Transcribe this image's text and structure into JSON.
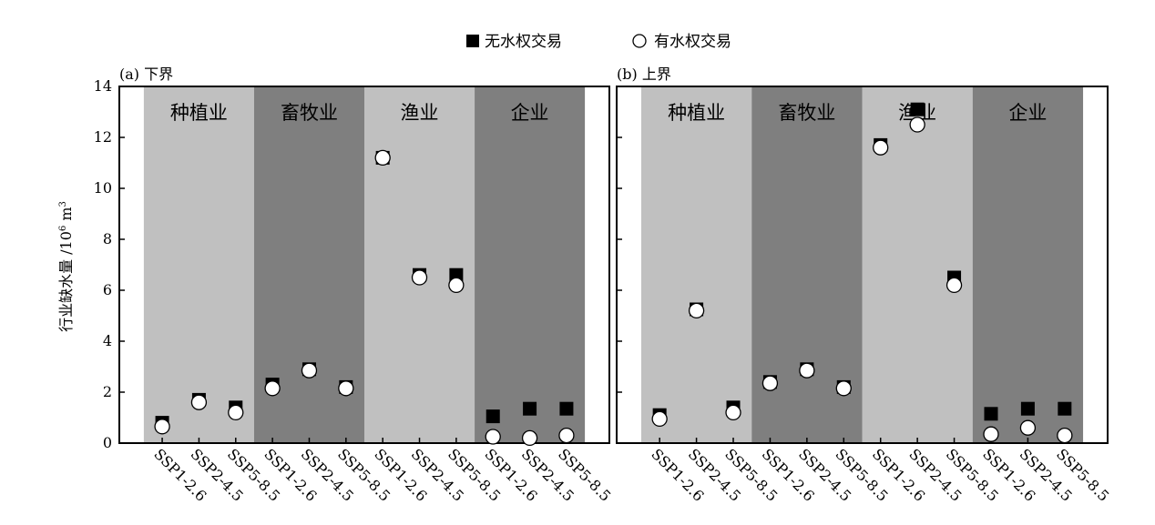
{
  "legend": {
    "no_trade_label": "无水权交易",
    "with_trade_label": "有水权交易"
  },
  "ylabel_main": "行业缺水量 /10",
  "ylabel_sup": "6",
  "ylabel_unit": " m",
  "ylabel_sup2": "3",
  "colors": {
    "band_light": "#c0c0c0",
    "band_dark": "#7f7f7f",
    "marker_fill_square": "#000000",
    "marker_fill_circle": "#ffffff"
  },
  "chart_data": [
    {
      "type": "scatter",
      "panel_label": "(a) 下界",
      "ylim": [
        0,
        14
      ],
      "yticks": [
        0,
        2,
        4,
        6,
        8,
        10,
        12,
        14
      ],
      "categories": [
        "SSP1-2.6",
        "SSP2-4.5",
        "SSP5-8.5",
        "SSP1-2.6",
        "SSP2-4.5",
        "SSP5-8.5",
        "SSP1-2.6",
        "SSP2-4.5",
        "SSP5-8.5",
        "SSP1-2.6",
        "SSP2-4.5",
        "SSP5-8.5"
      ],
      "groups": [
        "种植业",
        "畜牧业",
        "渔业",
        "企业"
      ],
      "series": [
        {
          "name": "无水权交易",
          "values": [
            0.8,
            1.7,
            1.4,
            2.3,
            2.9,
            2.2,
            11.2,
            6.6,
            6.6,
            1.05,
            1.35,
            1.35
          ]
        },
        {
          "name": "有水权交易",
          "values": [
            0.65,
            1.6,
            1.2,
            2.15,
            2.85,
            2.15,
            11.2,
            6.5,
            6.2,
            0.25,
            0.2,
            0.3
          ]
        }
      ]
    },
    {
      "type": "scatter",
      "panel_label": "(b) 上界",
      "ylim": [
        0,
        14
      ],
      "yticks": [
        0,
        2,
        4,
        6,
        8,
        10,
        12,
        14
      ],
      "categories": [
        "SSP1-2.6",
        "SSP2-4.5",
        "SSP5-8.5",
        "SSP1-2.6",
        "SSP2-4.5",
        "SSP5-8.5",
        "SSP1-2.6",
        "SSP2-4.5",
        "SSP5-8.5",
        "SSP1-2.6",
        "SSP2-4.5",
        "SSP5-8.5"
      ],
      "groups": [
        "种植业",
        "畜牧业",
        "渔业",
        "企业"
      ],
      "series": [
        {
          "name": "无水权交易",
          "values": [
            1.1,
            5.25,
            1.4,
            2.4,
            2.9,
            2.2,
            11.7,
            13.1,
            6.5,
            1.15,
            1.35,
            1.35
          ]
        },
        {
          "name": "有水权交易",
          "values": [
            0.95,
            5.2,
            1.2,
            2.35,
            2.85,
            2.15,
            11.6,
            12.5,
            6.2,
            0.35,
            0.6,
            0.3
          ]
        }
      ]
    }
  ]
}
